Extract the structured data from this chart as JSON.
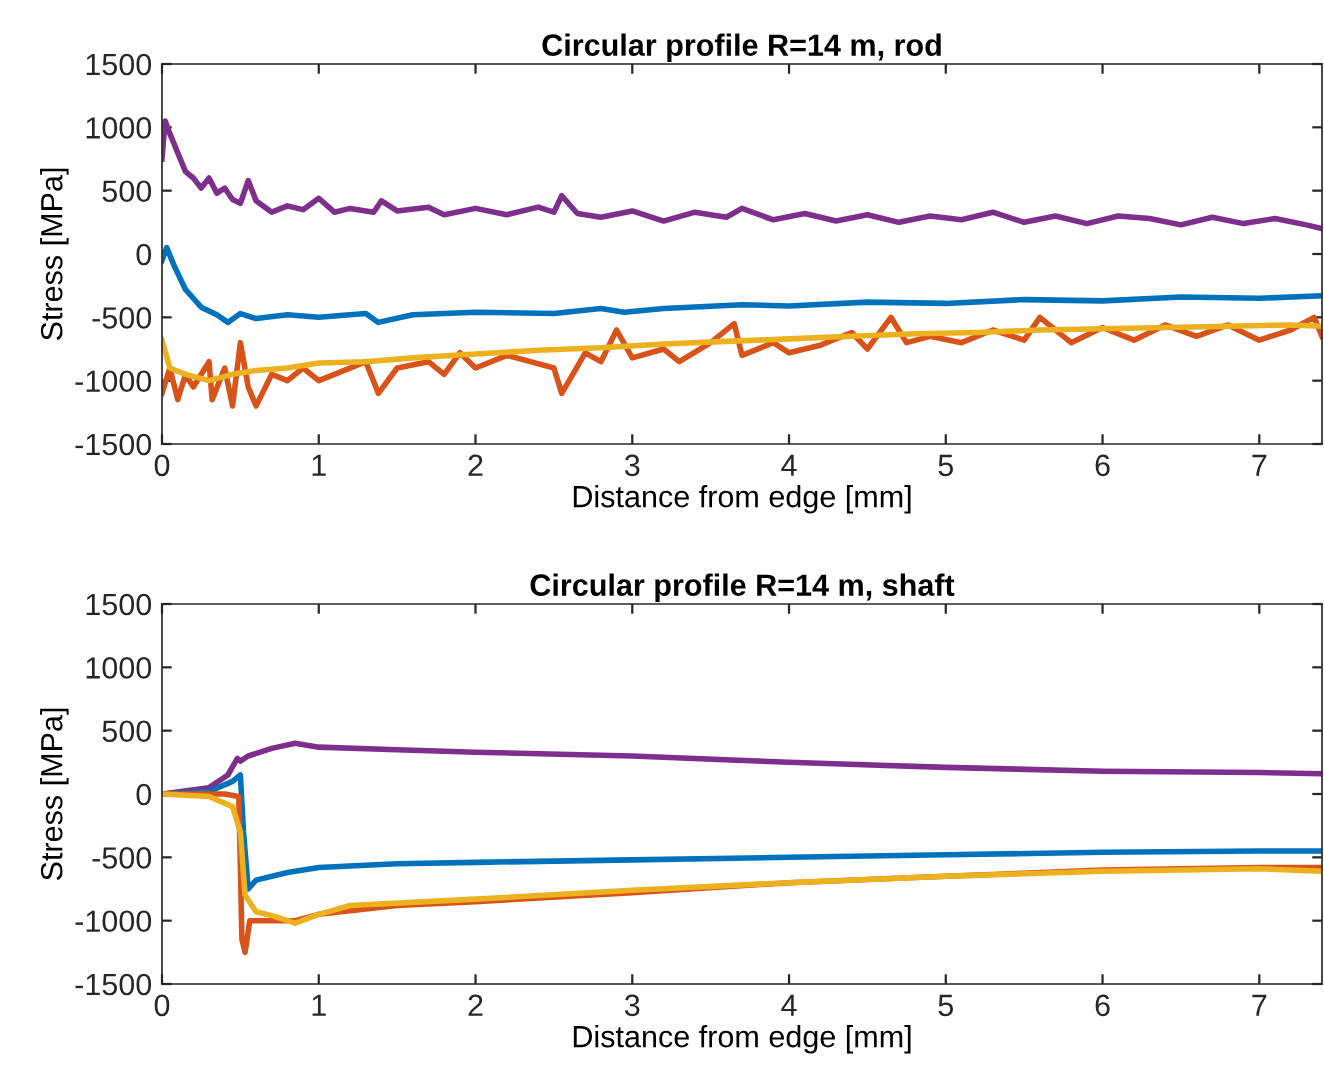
{
  "chart_data": [
    {
      "type": "line",
      "title": "Circular profile R=14 m, rod",
      "xlabel": "Distance from edge [mm]",
      "ylabel": "Stress [MPa]",
      "xlim": [
        0,
        7.4
      ],
      "xticks": [
        0,
        1,
        2,
        3,
        4,
        5,
        6,
        7
      ],
      "ylim": [
        -1500,
        1500
      ],
      "yticks": [
        -1500,
        -1000,
        -500,
        0,
        500,
        1000,
        1500
      ],
      "grid": false,
      "marker": "none",
      "line_style": "solid",
      "series": [
        {
          "color": "#7e2f8e",
          "x": [
            0,
            0.02,
            0.05,
            0.1,
            0.15,
            0.2,
            0.25,
            0.3,
            0.35,
            0.4,
            0.45,
            0.5,
            0.55,
            0.6,
            0.7,
            0.8,
            0.9,
            1.0,
            1.1,
            1.2,
            1.35,
            1.4,
            1.5,
            1.7,
            1.8,
            2.0,
            2.2,
            2.4,
            2.5,
            2.55,
            2.65,
            2.8,
            3.0,
            3.2,
            3.4,
            3.6,
            3.7,
            3.9,
            4.1,
            4.3,
            4.5,
            4.7,
            4.9,
            5.1,
            5.3,
            5.5,
            5.7,
            5.9,
            6.1,
            6.3,
            6.5,
            6.7,
            6.9,
            7.1,
            7.3,
            7.4
          ],
          "values": [
            750,
            1050,
            950,
            800,
            650,
            600,
            520,
            600,
            480,
            520,
            430,
            400,
            580,
            420,
            330,
            380,
            350,
            440,
            330,
            360,
            330,
            420,
            340,
            370,
            310,
            360,
            310,
            370,
            330,
            460,
            320,
            290,
            340,
            260,
            330,
            290,
            360,
            270,
            320,
            260,
            310,
            250,
            300,
            270,
            330,
            250,
            300,
            240,
            300,
            280,
            230,
            290,
            240,
            280,
            230,
            200
          ]
        },
        {
          "color": "#0072bd",
          "x": [
            0,
            0.03,
            0.08,
            0.15,
            0.25,
            0.35,
            0.42,
            0.5,
            0.6,
            0.8,
            1.0,
            1.3,
            1.38,
            1.6,
            2.0,
            2.5,
            2.8,
            2.95,
            3.2,
            3.7,
            4.0,
            4.5,
            5.0,
            5.5,
            6.0,
            6.5,
            7.0,
            7.4
          ],
          "values": [
            -50,
            50,
            -100,
            -280,
            -420,
            -480,
            -540,
            -470,
            -510,
            -480,
            -500,
            -470,
            -540,
            -480,
            -460,
            -470,
            -430,
            -460,
            -430,
            -400,
            -410,
            -380,
            -390,
            -360,
            -370,
            -340,
            -350,
            -330
          ]
        },
        {
          "color": "#d95319",
          "x": [
            0,
            0.05,
            0.1,
            0.15,
            0.2,
            0.3,
            0.32,
            0.4,
            0.45,
            0.5,
            0.55,
            0.6,
            0.7,
            0.8,
            0.9,
            1.0,
            1.1,
            1.3,
            1.38,
            1.5,
            1.7,
            1.8,
            1.9,
            2.0,
            2.2,
            2.35,
            2.5,
            2.55,
            2.7,
            2.8,
            2.9,
            3.0,
            3.2,
            3.3,
            3.5,
            3.65,
            3.7,
            3.9,
            4.0,
            4.2,
            4.4,
            4.5,
            4.65,
            4.75,
            4.9,
            5.1,
            5.3,
            5.5,
            5.6,
            5.8,
            6.0,
            6.2,
            6.4,
            6.6,
            6.8,
            7.0,
            7.2,
            7.35,
            7.4
          ],
          "values": [
            -1100,
            -900,
            -1150,
            -950,
            -1050,
            -850,
            -1150,
            -900,
            -1200,
            -700,
            -1050,
            -1200,
            -950,
            -1000,
            -900,
            -1000,
            -950,
            -850,
            -1100,
            -900,
            -850,
            -950,
            -780,
            -900,
            -800,
            -850,
            -900,
            -1100,
            -780,
            -850,
            -600,
            -820,
            -750,
            -850,
            -700,
            -550,
            -800,
            -700,
            -780,
            -720,
            -620,
            -750,
            -500,
            -700,
            -650,
            -700,
            -600,
            -680,
            -500,
            -700,
            -580,
            -680,
            -560,
            -650,
            -560,
            -680,
            -600,
            -500,
            -650
          ]
        },
        {
          "color": "#edb120",
          "x": [
            0,
            0.05,
            0.15,
            0.3,
            0.45,
            0.6,
            0.8,
            1.0,
            1.3,
            1.6,
            2.0,
            2.4,
            2.8,
            3.2,
            3.6,
            4.0,
            4.4,
            4.8,
            5.2,
            5.6,
            6.0,
            6.4,
            6.8,
            7.2,
            7.4
          ],
          "values": [
            -680,
            -900,
            -950,
            -1000,
            -950,
            -920,
            -900,
            -860,
            -850,
            -820,
            -790,
            -760,
            -740,
            -710,
            -690,
            -670,
            -650,
            -630,
            -620,
            -600,
            -590,
            -580,
            -570,
            -560,
            -570
          ]
        }
      ]
    },
    {
      "type": "line",
      "title": "Circular profile R=14 m, shaft",
      "xlabel": "Distance from edge [mm]",
      "ylabel": "Stress [MPa]",
      "xlim": [
        0,
        7.4
      ],
      "xticks": [
        0,
        1,
        2,
        3,
        4,
        5,
        6,
        7
      ],
      "ylim": [
        -1500,
        1500
      ],
      "yticks": [
        -1500,
        -1000,
        -500,
        0,
        500,
        1000,
        1500
      ],
      "grid": false,
      "marker": "none",
      "line_style": "solid",
      "series": [
        {
          "color": "#7e2f8e",
          "x": [
            0,
            0.3,
            0.42,
            0.48,
            0.5,
            0.55,
            0.7,
            0.85,
            1.0,
            1.5,
            2.0,
            3.0,
            4.0,
            5.0,
            6.0,
            7.0,
            7.4
          ],
          "values": [
            0,
            50,
            150,
            280,
            260,
            300,
            360,
            400,
            370,
            350,
            330,
            300,
            250,
            210,
            180,
            170,
            160
          ]
        },
        {
          "color": "#0072bd",
          "x": [
            0,
            0.3,
            0.45,
            0.5,
            0.52,
            0.55,
            0.6,
            0.8,
            1.0,
            1.5,
            2.0,
            3.0,
            4.0,
            5.0,
            6.0,
            7.0,
            7.4
          ],
          "values": [
            0,
            20,
            100,
            150,
            -300,
            -750,
            -680,
            -620,
            -580,
            -550,
            -540,
            -520,
            -500,
            -480,
            -460,
            -450,
            -450
          ]
        },
        {
          "color": "#d95319",
          "x": [
            0,
            0.4,
            0.49,
            0.51,
            0.53,
            0.56,
            0.7,
            0.85,
            1.0,
            1.5,
            2.0,
            3.0,
            4.0,
            5.0,
            6.0,
            7.0,
            7.4
          ],
          "values": [
            0,
            0,
            -20,
            -1150,
            -1250,
            -1000,
            -1000,
            -1000,
            -950,
            -880,
            -850,
            -780,
            -700,
            -650,
            -600,
            -580,
            -580
          ]
        },
        {
          "color": "#edb120",
          "x": [
            0,
            0.3,
            0.45,
            0.5,
            0.53,
            0.6,
            0.7,
            0.85,
            1.0,
            1.2,
            2.0,
            3.0,
            4.0,
            5.0,
            6.0,
            7.0,
            7.4
          ],
          "values": [
            0,
            -20,
            -100,
            -300,
            -800,
            -930,
            -960,
            -1020,
            -950,
            -880,
            -830,
            -760,
            -700,
            -650,
            -610,
            -590,
            -610
          ]
        }
      ]
    }
  ]
}
